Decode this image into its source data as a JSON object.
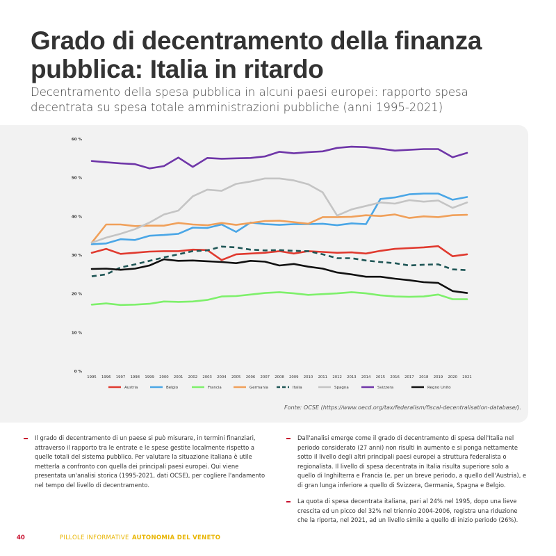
{
  "header": {
    "title": "Grado di decentramento della finanza pubblica: Italia in ritardo",
    "subtitle": "Decentramento della spesa pubblica in alcuni paesi europei: rapporto spesa decentrata su spesa totale amministrazioni pubbliche (anni 1995-2021)"
  },
  "source": "Fonte: OCSE (https://www.oecd.org/tax/federalism/fiscal-decentralisation-database/).",
  "text": {
    "left": [
      "Il grado di decentramento di un paese si può misurare, in termini finanziari, attraverso il rapporto tra le entrate e le spese gestite localmente rispetto a quelle totali del sistema pubblico. Per valutare la situazione italiana è utile metterla a confronto con quella dei principali paesi europei. Qui viene presentata un'analisi storica (1995-2021, dati OCSE), per cogliere l'andamento nel tempo del livello di decentramento."
    ],
    "right": [
      "Dall'analisi emerge come il grado di decentramento di spesa dell'Italia nel periodo considerato (27 anni) non risulti in aumento e si ponga nettamente sotto il livello degli altri principali paesi europei a struttura federalista o regionalista. Il livello di spesa decentrata in Italia risulta superiore solo a quello di Inghilterra e Francia (e, per un breve periodo, a quello dell'Austria), e di gran lunga inferiore a quello di Svizzera, Germania, Spagna e Belgio.",
      "La quota di spesa decentrata italiana, pari al 24% nel 1995, dopo una lieve crescita ed un picco del 32% nel triennio 2004-2006, registra una riduzione che la riporta, nel 2021, ad un livello simile a quello di inizio periodo (26%)."
    ]
  },
  "footer": {
    "page_number": "40",
    "series_label": "PILLOLE INFORMATIVE",
    "series_name": "AUTONOMIA DEL VENETO"
  },
  "chart_data": {
    "type": "line",
    "title": "",
    "xlabel": "",
    "ylabel": "",
    "ylim": [
      0,
      60
    ],
    "yticks": [
      "0 %",
      "10 %",
      "20 %",
      "30 %",
      "40 %",
      "50 %",
      "60 %"
    ],
    "ytick_values": [
      0,
      10,
      20,
      30,
      40,
      50,
      60
    ],
    "legend_position": "bottom",
    "x": [
      "1995",
      "1996",
      "1997",
      "1998",
      "1999",
      "2000",
      "2001",
      "2002",
      "2003",
      "2004",
      "2005",
      "2006",
      "2007",
      "2008",
      "2009",
      "2010",
      "2011",
      "2012",
      "2013",
      "2014",
      "2015",
      "2016",
      "2017",
      "2018",
      "2019",
      "2020",
      "2021"
    ],
    "series": [
      {
        "name": "Austria",
        "color": "#e03a2f",
        "dash": false,
        "values": [
          30.6,
          31.6,
          30.3,
          30.6,
          30.9,
          31.0,
          31.0,
          31.4,
          31.3,
          28.7,
          30.2,
          30.4,
          30.6,
          31.0,
          30.4,
          31.0,
          30.8,
          30.6,
          30.7,
          30.4,
          31.1,
          31.6,
          31.8,
          32.0,
          32.3,
          29.7,
          30.2
        ]
      },
      {
        "name": "Belgio",
        "color": "#4aa6e6",
        "dash": false,
        "values": [
          32.8,
          33.0,
          34.1,
          33.9,
          35.0,
          35.2,
          35.5,
          37.1,
          37.0,
          37.9,
          36.0,
          38.4,
          38.0,
          37.8,
          38.0,
          38.0,
          38.1,
          37.7,
          38.2,
          38.0,
          44.5,
          44.9,
          45.7,
          45.9,
          45.9,
          44.3,
          45.0
        ]
      },
      {
        "name": "Francia",
        "color": "#7ef06b",
        "dash": false,
        "values": [
          17.2,
          17.5,
          17.1,
          17.2,
          17.4,
          18.0,
          17.9,
          18.0,
          18.4,
          19.3,
          19.4,
          19.8,
          20.2,
          20.4,
          20.1,
          19.7,
          19.9,
          20.1,
          20.4,
          20.1,
          19.6,
          19.3,
          19.2,
          19.3,
          19.8,
          18.6,
          18.6
        ]
      },
      {
        "name": "Germania",
        "color": "#f0a05a",
        "dash": false,
        "values": [
          33.2,
          37.9,
          37.9,
          37.5,
          37.6,
          37.6,
          38.3,
          37.9,
          37.7,
          38.3,
          37.8,
          38.3,
          38.8,
          38.9,
          38.5,
          38.1,
          39.8,
          39.8,
          39.9,
          40.3,
          40.1,
          40.5,
          39.6,
          40.0,
          39.8,
          40.3,
          40.4
        ]
      },
      {
        "name": "Italia",
        "color": "#1f5656",
        "dash": true,
        "values": [
          24.5,
          25.0,
          26.8,
          27.6,
          28.5,
          29.4,
          30.2,
          31.0,
          31.2,
          32.2,
          32.0,
          31.4,
          31.2,
          31.3,
          31.1,
          31.0,
          30.2,
          29.2,
          29.2,
          28.6,
          28.2,
          27.9,
          27.3,
          27.5,
          27.6,
          26.3,
          26.1
        ]
      },
      {
        "name": "Spagna",
        "color": "#c4c4c4",
        "dash": false,
        "values": [
          33.2,
          34.5,
          35.5,
          36.7,
          38.4,
          40.5,
          41.5,
          45.2,
          46.9,
          46.6,
          48.4,
          49.0,
          49.8,
          49.8,
          49.3,
          48.3,
          46.2,
          40.2,
          41.8,
          42.7,
          43.6,
          43.3,
          44.2,
          43.8,
          44.1,
          42.2,
          43.6
        ]
      },
      {
        "name": "Svizzera",
        "color": "#6f36a8",
        "dash": false,
        "values": [
          54.3,
          54.0,
          53.7,
          53.5,
          52.4,
          53.0,
          55.2,
          52.8,
          55.1,
          54.9,
          55.0,
          55.1,
          55.5,
          56.7,
          56.3,
          56.6,
          56.8,
          57.7,
          58.0,
          57.9,
          57.5,
          57.0,
          57.2,
          57.4,
          57.4,
          55.3,
          56.4
        ]
      },
      {
        "name": "Regno Unito",
        "color": "#111111",
        "dash": false,
        "values": [
          26.4,
          26.5,
          26.2,
          26.5,
          27.3,
          28.9,
          28.5,
          28.6,
          28.4,
          28.2,
          27.9,
          28.5,
          28.3,
          27.3,
          27.7,
          27.0,
          26.5,
          25.5,
          25.0,
          24.4,
          24.4,
          23.9,
          23.5,
          23.0,
          22.8,
          20.7,
          20.2
        ]
      }
    ]
  }
}
